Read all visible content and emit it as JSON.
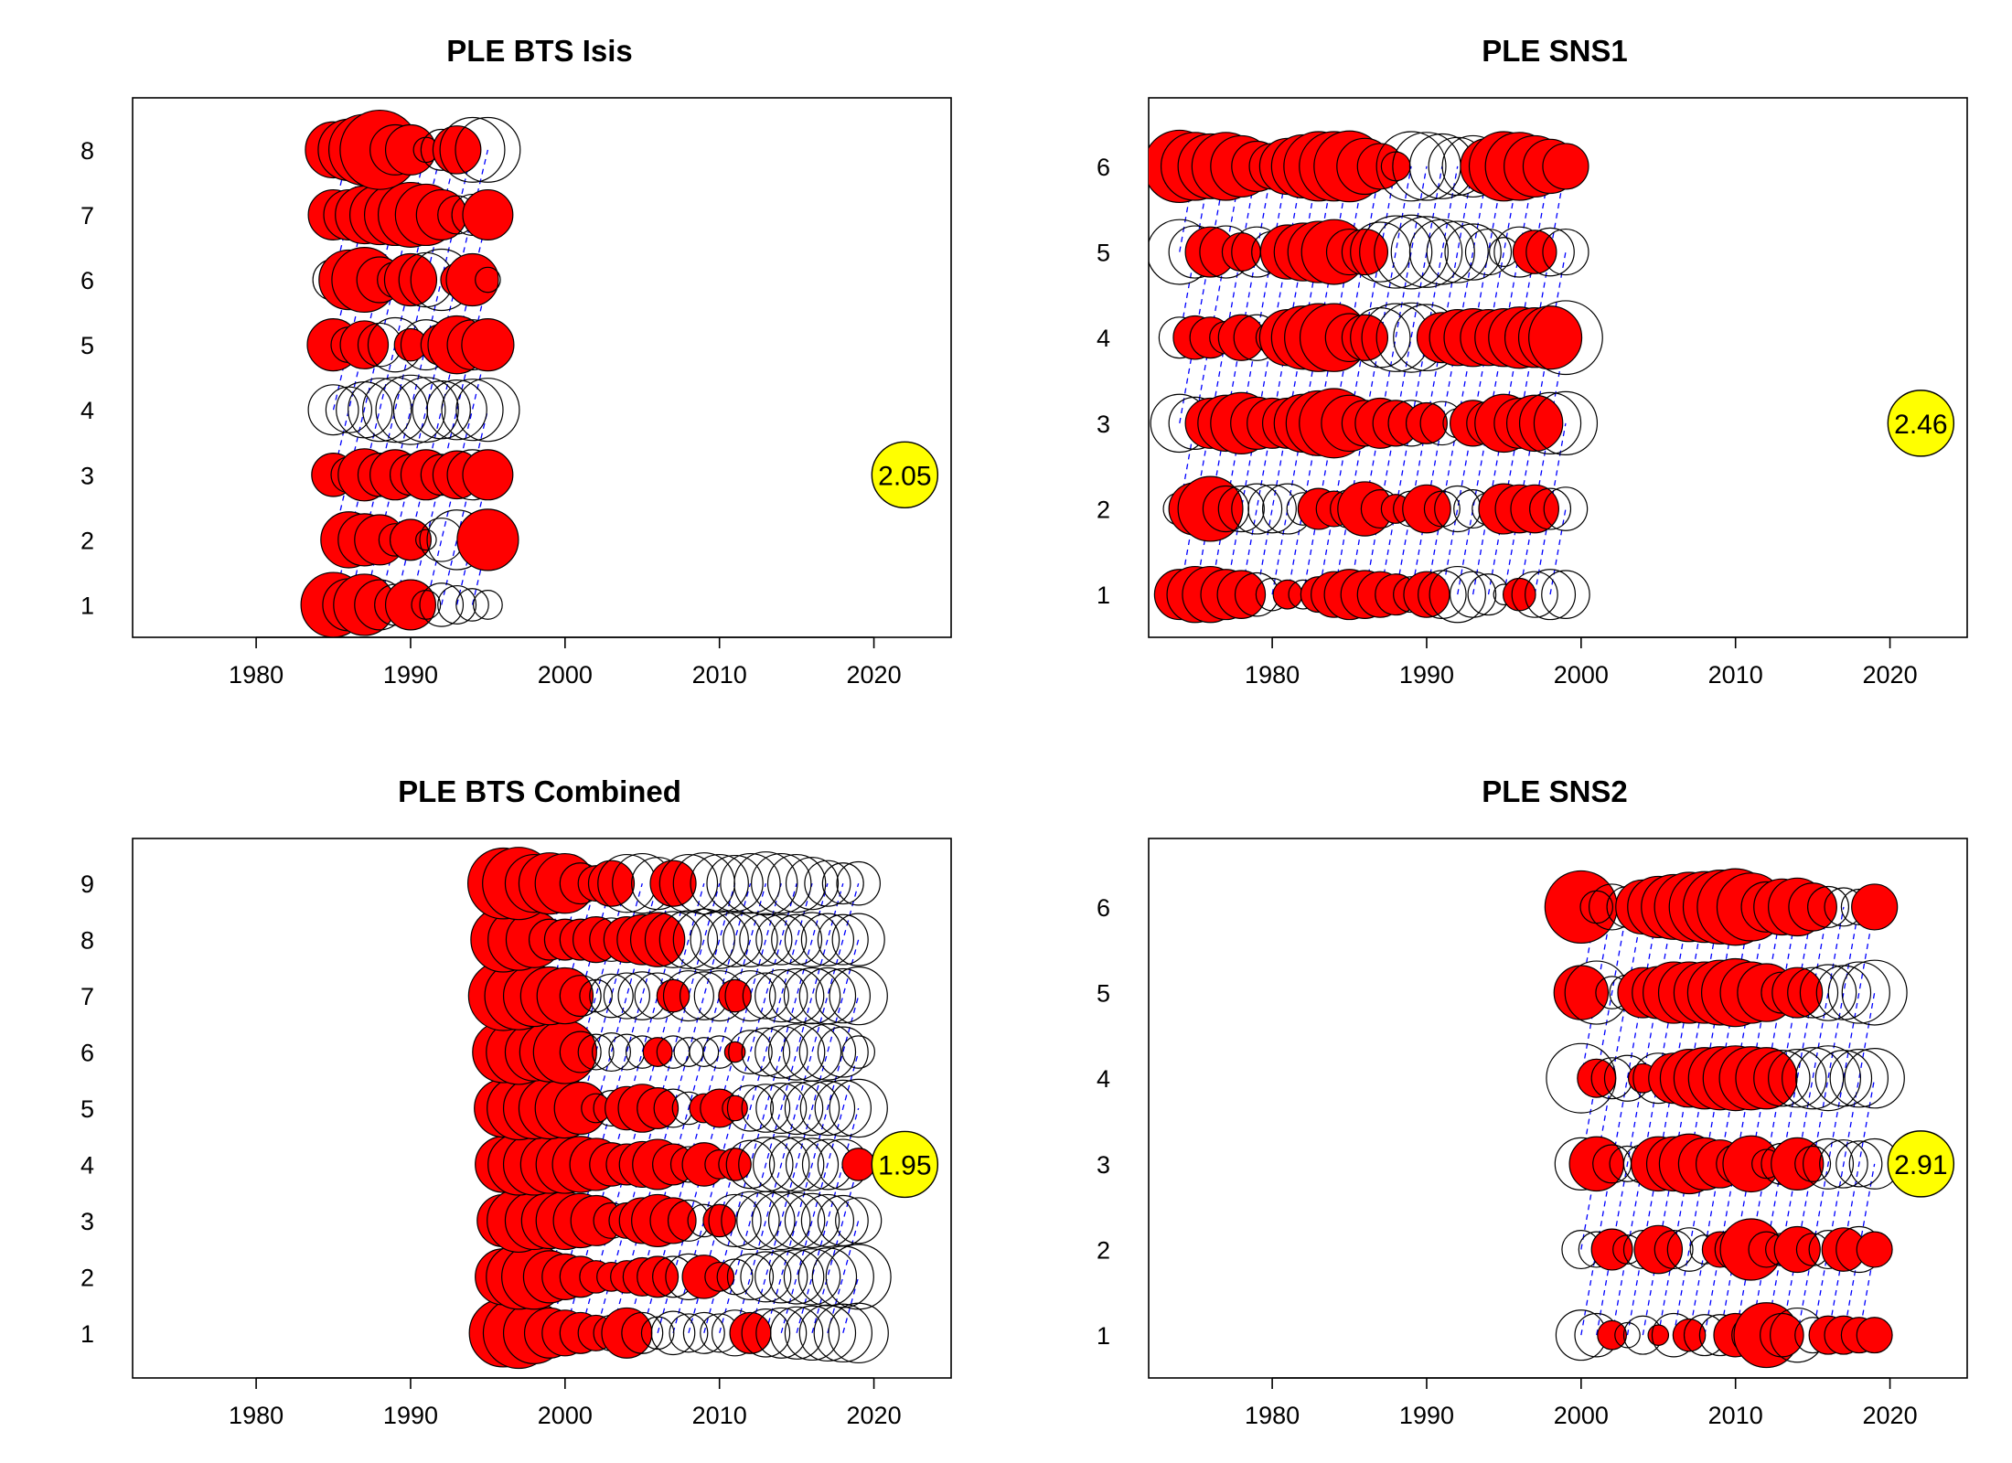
{
  "colors": {
    "positive_fill": "#ff0000",
    "negative_fill": "none",
    "bubble_stroke": "#000000",
    "cohort_line": "#0000ff",
    "reference_fill": "#ffff00"
  },
  "chart_data": [
    {
      "type": "scatter",
      "subtype": "bubble-residuals",
      "title": "PLE BTS Isis",
      "xlim": [
        1972,
        2025
      ],
      "xticks": [
        1980,
        1990,
        2000,
        2010,
        2020
      ],
      "yticks": [
        1,
        2,
        3,
        4,
        5,
        6,
        7,
        8
      ],
      "ylim": [
        0.5,
        8.8
      ],
      "years": [
        1985,
        1986,
        1987,
        1988,
        1989,
        1990,
        1991,
        1992,
        1993,
        1994,
        1995
      ],
      "reference": {
        "label": "2.05",
        "x": 2022,
        "y": 3
      },
      "residuals": {
        "1": [
          2.0,
          1.3,
          1.8,
          -1.2,
          -0.8,
          1.2,
          -0.4,
          -0.9,
          -0.7,
          -0.5,
          -0.4
        ],
        "2": [
          0.0,
          1.5,
          1.3,
          1.2,
          -0.5,
          0.8,
          -0.2,
          -0.9,
          -1.7,
          0.0,
          1.8
        ],
        "3": [
          0.9,
          -0.6,
          1.3,
          -0.9,
          1.2,
          -0.8,
          1.2,
          -0.8,
          1.1,
          -1.2,
          1.2
        ],
        "4": [
          -1.2,
          -1.0,
          -1.5,
          -1.9,
          -2.0,
          -2.3,
          -2.0,
          -1.6,
          -1.7,
          -1.8,
          -1.9
        ],
        "5": [
          1.3,
          -0.6,
          1.1,
          -0.9,
          -1.4,
          0.5,
          -1.2,
          0.8,
          1.6,
          -1.2,
          1.3
        ],
        "6": [
          -0.8,
          1.7,
          2.0,
          1.0,
          -0.6,
          1.3,
          -1.4,
          -1.8,
          0.5,
          1.3,
          -0.3
        ],
        "7": [
          1.2,
          1.2,
          1.6,
          1.7,
          1.8,
          2.0,
          1.8,
          1.2,
          -0.7,
          -0.8,
          1.2
        ],
        "8": [
          1.5,
          1.8,
          2.4,
          3.0,
          -1.2,
          1.2,
          -0.3,
          -0.8,
          1.1,
          -2.0,
          -2.0
        ]
      }
    },
    {
      "type": "scatter",
      "subtype": "bubble-residuals",
      "title": "PLE SNS1",
      "xlim": [
        1972,
        2025
      ],
      "xticks": [
        1980,
        1990,
        2000,
        2010,
        2020
      ],
      "yticks": [
        1,
        2,
        3,
        4,
        5,
        6
      ],
      "ylim": [
        0.5,
        6.8
      ],
      "years": [
        1974,
        1975,
        1976,
        1977,
        1978,
        1979,
        1980,
        1981,
        1982,
        1983,
        1984,
        1985,
        1986,
        1987,
        1988,
        1989,
        1990,
        1991,
        1992,
        1993,
        1994,
        1995,
        1996,
        1997,
        1998,
        1999
      ],
      "reference": {
        "label": "2.46",
        "x": 2022,
        "y": 3
      },
      "residuals": {
        "1": [
          1.2,
          1.5,
          1.5,
          1.2,
          1.1,
          -0.9,
          -0.5,
          0.4,
          -0.4,
          0.6,
          1.0,
          1.2,
          1.1,
          1.0,
          0.8,
          -0.6,
          1.0,
          -1.1,
          -1.5,
          -1.0,
          -0.8,
          -0.2,
          0.5,
          -1.0,
          -1.2,
          -1.1
        ],
        "2": [
          -0.5,
          1.3,
          2.0,
          -1.0,
          -1.0,
          -1.2,
          -1.1,
          -1.2,
          -0.5,
          0.8,
          0.6,
          -0.7,
          1.4,
          -0.7,
          0.4,
          -0.6,
          1.1,
          -0.6,
          -1.0,
          -0.7,
          -0.5,
          1.2,
          1.1,
          1.1,
          -0.8,
          -0.9
        ],
        "3": [
          -1.6,
          -1.3,
          1.2,
          1.5,
          1.8,
          1.3,
          1.2,
          1.2,
          1.6,
          2.0,
          2.3,
          1.5,
          1.0,
          1.2,
          1.0,
          -1.0,
          0.8,
          -0.9,
          -0.4,
          1.0,
          0.9,
          1.6,
          1.2,
          1.5,
          -1.8,
          -1.9
        ],
        "4": [
          -0.8,
          0.9,
          0.8,
          0.5,
          1.0,
          -1.0,
          -0.5,
          1.5,
          1.9,
          2.2,
          2.2,
          1.1,
          1.0,
          -1.7,
          -2.2,
          -2.3,
          -2.1,
          1.2,
          1.5,
          1.6,
          1.5,
          1.6,
          1.8,
          1.7,
          1.9,
          -2.6
        ],
        "5": [
          -2.0,
          -1.3,
          1.2,
          -1.3,
          0.7,
          -1.2,
          -0.8,
          1.4,
          1.6,
          1.8,
          2.0,
          1.0,
          1.0,
          -1.7,
          -2.5,
          -2.6,
          -2.4,
          -2.0,
          -1.8,
          -1.5,
          -1.0,
          -0.4,
          -1.2,
          0.9,
          -1.1,
          -1.0
        ],
        "6": [
          2.5,
          2.2,
          2.0,
          2.2,
          1.8,
          1.2,
          1.0,
          1.5,
          1.9,
          2.3,
          2.3,
          2.4,
          1.5,
          1.0,
          0.4,
          -2.3,
          -2.2,
          -2.0,
          -1.6,
          -1.8,
          1.5,
          2.3,
          2.2,
          1.8,
          1.4,
          1.0
        ]
      }
    },
    {
      "type": "scatter",
      "subtype": "bubble-residuals",
      "title": "PLE BTS Combined",
      "xlim": [
        1972,
        2025
      ],
      "xticks": [
        1980,
        1990,
        2000,
        2010,
        2020
      ],
      "yticks": [
        1,
        2,
        3,
        4,
        5,
        6,
        7,
        8,
        9
      ],
      "ylim": [
        0.2,
        9.8
      ],
      "years": [
        1996,
        1997,
        1998,
        1999,
        2000,
        2001,
        2002,
        2003,
        2004,
        2005,
        2006,
        2007,
        2008,
        2009,
        2010,
        2011,
        2012,
        2013,
        2014,
        2015,
        2016,
        2017,
        2018,
        2019
      ],
      "reference": {
        "label": "1.95",
        "x": 2022,
        "y": 4
      },
      "residuals": {
        "1": [
          2.2,
          2.4,
          1.8,
          1.2,
          1.0,
          0.8,
          0.6,
          -0.6,
          1.2,
          -0.8,
          -0.5,
          -0.9,
          -0.7,
          -0.8,
          -0.7,
          -1.0,
          0.8,
          -1.1,
          -1.2,
          -1.3,
          -1.4,
          -1.5,
          -1.6,
          -1.7
        ],
        "2": [
          1.5,
          2.0,
          2.0,
          1.3,
          1.0,
          0.8,
          0.5,
          0.4,
          0.5,
          0.7,
          0.8,
          -0.8,
          -1.0,
          0.9,
          0.4,
          -0.6,
          -1.0,
          -1.2,
          -1.3,
          -1.4,
          -1.5,
          -1.6,
          -1.8,
          -2.0
        ],
        "3": [
          1.3,
          1.9,
          1.6,
          1.5,
          1.6,
          1.4,
          1.2,
          -0.6,
          0.6,
          1.0,
          1.3,
          1.0,
          -0.8,
          -0.5,
          0.5,
          -1.3,
          -1.6,
          -1.6,
          -1.6,
          -1.5,
          -1.4,
          -1.3,
          -1.2,
          -1.0
        ],
        "4": [
          1.5,
          1.8,
          1.8,
          1.6,
          1.6,
          1.5,
          1.3,
          0.9,
          0.8,
          1.0,
          1.2,
          0.8,
          -0.6,
          0.9,
          0.4,
          0.5,
          -1.1,
          -1.4,
          -1.5,
          -1.4,
          -1.3,
          -1.2,
          -1.2,
          0.5
        ],
        "5": [
          1.6,
          1.9,
          1.8,
          1.8,
          1.7,
          1.3,
          0.4,
          -0.6,
          0.9,
          1.1,
          0.8,
          -0.7,
          -0.5,
          0.4,
          0.7,
          0.3,
          -1.0,
          -1.1,
          -1.2,
          -1.3,
          -1.4,
          -1.4,
          -1.5,
          -1.6
        ],
        "6": [
          1.8,
          2.0,
          1.6,
          1.7,
          1.9,
          -0.8,
          -0.6,
          -0.7,
          -0.6,
          -0.5,
          0.4,
          -0.5,
          -0.4,
          -0.4,
          -0.5,
          0.2,
          -0.9,
          -1.1,
          -1.3,
          -1.5,
          -1.6,
          -1.5,
          -1.2,
          -0.5
        ],
        "7": [
          2.3,
          2.2,
          1.8,
          1.6,
          1.5,
          -0.8,
          -0.5,
          -0.9,
          -1.0,
          -1.1,
          -1.0,
          0.5,
          -1.2,
          -1.1,
          -1.2,
          0.5,
          -1.2,
          -1.0,
          -1.3,
          -1.4,
          -1.5,
          -1.5,
          -1.4,
          -1.6
        ],
        "8": [
          2.0,
          1.8,
          1.5,
          0.8,
          0.8,
          0.8,
          1.0,
          -0.9,
          1.0,
          1.2,
          1.4,
          -1.5,
          -1.6,
          -1.8,
          -1.6,
          -1.4,
          -1.4,
          -1.3,
          -1.2,
          -1.2,
          -1.4,
          -1.3,
          -1.2,
          -1.3
        ],
        "9": [
          2.4,
          2.5,
          1.6,
          1.8,
          1.7,
          -0.8,
          0.6,
          1.0,
          -1.6,
          -1.7,
          -1.3,
          1.0,
          -1.6,
          -1.8,
          -1.6,
          -1.5,
          -1.7,
          -1.9,
          -1.7,
          -1.6,
          -1.3,
          -1.0,
          -0.8,
          -0.9
        ]
      }
    },
    {
      "type": "scatter",
      "subtype": "bubble-residuals",
      "title": "PLE SNS2",
      "xlim": [
        1972,
        2025
      ],
      "xticks": [
        1980,
        1990,
        2000,
        2010,
        2020
      ],
      "yticks": [
        1,
        2,
        3,
        4,
        5,
        6
      ],
      "ylim": [
        0.5,
        6.8
      ],
      "years": [
        2000,
        2001,
        2002,
        2003,
        2004,
        2005,
        2006,
        2007,
        2008,
        2009,
        2010,
        2011,
        2012,
        2013,
        2014,
        2015,
        2016,
        2017,
        2018,
        2019
      ],
      "reference": {
        "label": "2.91",
        "x": 2022,
        "y": 3
      },
      "residuals": {
        "1": [
          -1.2,
          -0.9,
          0.4,
          -0.3,
          -0.7,
          0.2,
          -0.9,
          0.5,
          -0.8,
          -0.8,
          0.9,
          0.7,
          2.0,
          0.9,
          -1.4,
          -0.6,
          0.7,
          0.7,
          0.6,
          0.6
        ],
        "2": [
          -0.7,
          -0.6,
          0.8,
          -0.4,
          -0.7,
          1.1,
          -0.7,
          -0.9,
          -0.4,
          0.6,
          -0.8,
          1.8,
          -0.6,
          -0.5,
          1.0,
          -0.5,
          -0.7,
          0.9,
          -1.0,
          0.6
        ],
        "3": [
          -1.3,
          1.4,
          -0.7,
          -0.6,
          -0.7,
          1.4,
          1.4,
          1.7,
          1.3,
          1.1,
          0.7,
          1.5,
          0.4,
          -0.8,
          1.3,
          -0.6,
          -1.2,
          -1.1,
          -1.0,
          -1.2
        ],
        "4": [
          -2.3,
          0.7,
          -0.8,
          -1.0,
          0.4,
          -1.2,
          1.2,
          1.6,
          1.8,
          1.9,
          2.0,
          1.9,
          1.8,
          -1.5,
          -1.6,
          -1.8,
          -2.0,
          -1.5,
          -1.6,
          -1.7
        ],
        "5": [
          1.4,
          -1.9,
          -0.5,
          -0.6,
          1.2,
          1.3,
          1.8,
          1.8,
          1.8,
          2.0,
          2.2,
          1.8,
          1.6,
          0.8,
          1.2,
          -1.2,
          -1.5,
          -1.4,
          -1.8,
          -2.0
        ],
        "6": [
          2.5,
          0.5,
          -1.0,
          -0.8,
          1.4,
          1.8,
          2.0,
          2.3,
          2.4,
          2.6,
          2.8,
          2.2,
          1.2,
          1.5,
          1.6,
          1.1,
          -0.8,
          -0.7,
          -0.6,
          1.0
        ]
      }
    }
  ]
}
